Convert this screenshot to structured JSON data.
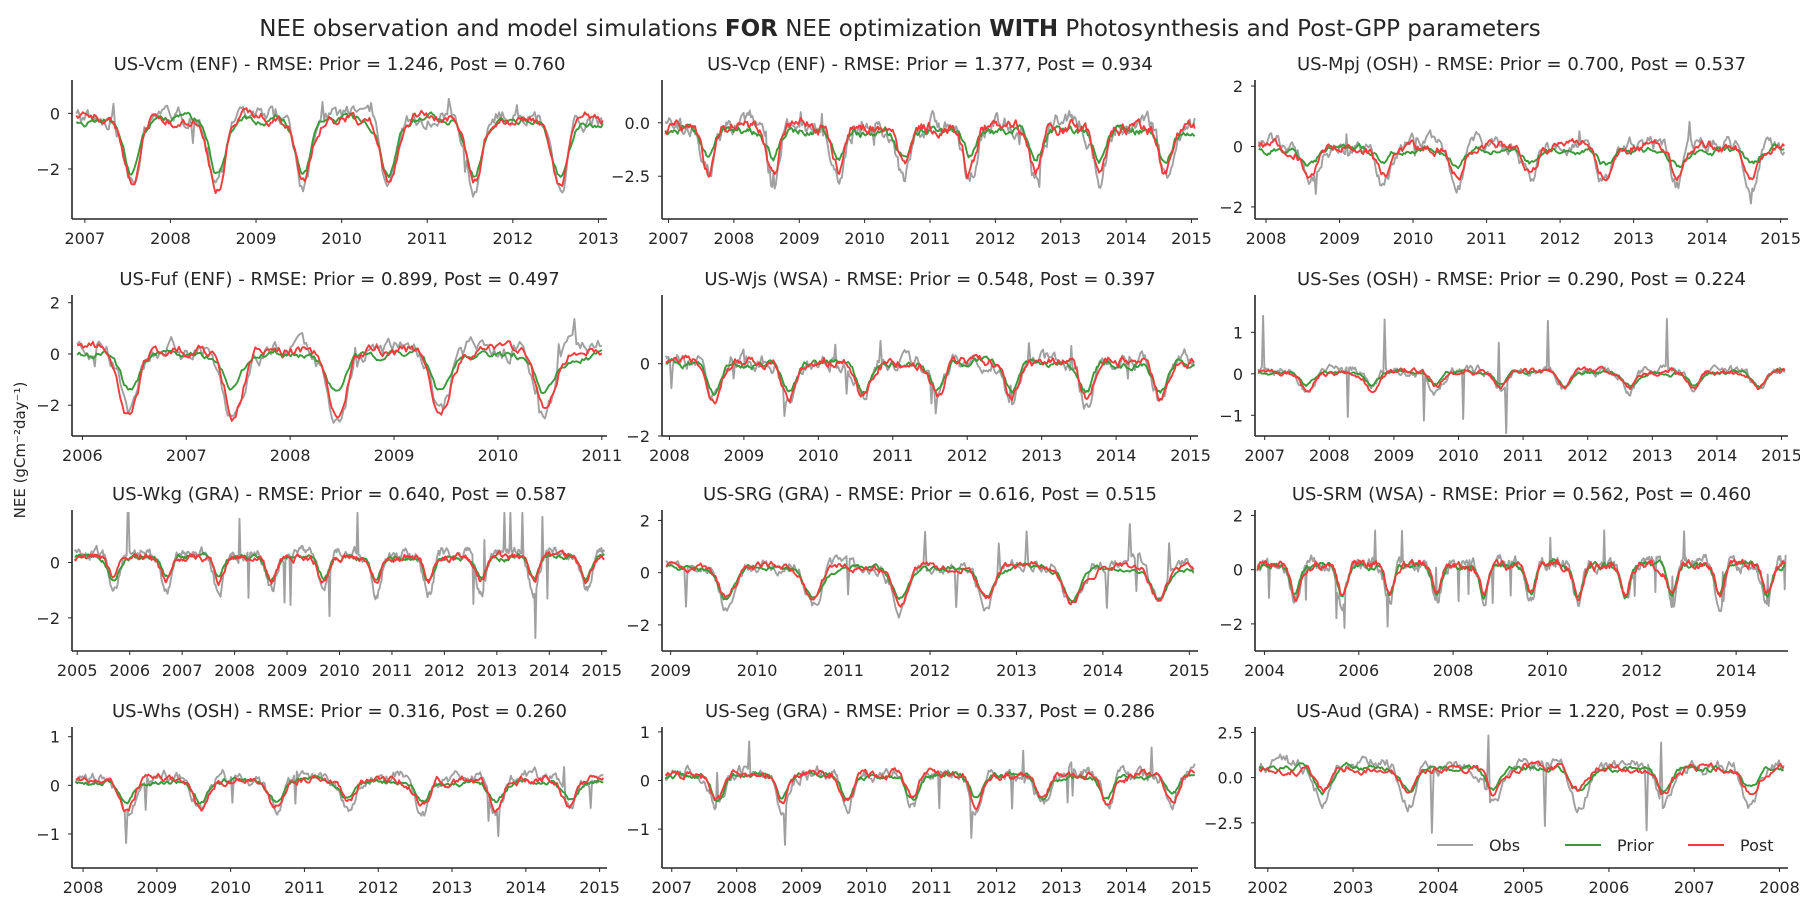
{
  "figure": {
    "title_parts": [
      {
        "text": "NEE observation and model simulations ",
        "bold": false
      },
      {
        "text": "FOR",
        "bold": true
      },
      {
        "text": " NEE optimization ",
        "bold": false
      },
      {
        "text": "WITH",
        "bold": true
      },
      {
        "text": " Photosynthesis and Post-GPP parameters",
        "bold": false
      }
    ],
    "ylabel": "NEE (gCm⁻²day⁻¹)"
  },
  "colors": {
    "Obs": "#a0a0a0",
    "Prior": "#3a9a3a",
    "Post": "#f03c3c",
    "axis": "#262626"
  },
  "legend": {
    "placement": "lower-right of last panel",
    "entries": [
      "Obs",
      "Prior",
      "Post"
    ]
  },
  "chart_data": [
    {
      "type": "line",
      "title": "US-Vcm (ENF) - RMSE: Prior = 1.246, Post = 0.760",
      "xlim": [
        2006.85,
        2013.1
      ],
      "ylim": [
        -3.8,
        1.2
      ],
      "xticks": [
        2007,
        2008,
        2009,
        2010,
        2011,
        2012,
        2013
      ],
      "yticks": [
        -2,
        0
      ],
      "ytick_labels": [
        "−2",
        "0"
      ],
      "signal": {
        "amp_obs": 1.6,
        "amp_prior": 1.2,
        "amp_post": 1.5,
        "offset": -0.9,
        "period": 1.0,
        "peak": 0.55,
        "noise": 0.5,
        "spike": 0.4
      },
      "series": [
        {
          "name": "Obs"
        },
        {
          "name": "Prior"
        },
        {
          "name": "Post"
        }
      ]
    },
    {
      "type": "line",
      "title": "US-Vcp (ENF) - RMSE: Prior = 1.377, Post = 0.934",
      "xlim": [
        2006.9,
        2015.1
      ],
      "ylim": [
        -4.5,
        2.0
      ],
      "xticks": [
        2007,
        2008,
        2009,
        2010,
        2011,
        2012,
        2013,
        2014,
        2015
      ],
      "yticks": [
        -2.5,
        0.0
      ],
      "ytick_labels": [
        "−2.5",
        "0.0"
      ],
      "signal": {
        "amp_obs": 1.6,
        "amp_prior": 0.8,
        "amp_post": 1.3,
        "offset": -0.9,
        "period": 1.0,
        "peak": 0.6,
        "noise": 0.7,
        "spike": 0.4
      },
      "series": [
        {
          "name": "Obs"
        },
        {
          "name": "Prior"
        },
        {
          "name": "Post"
        }
      ]
    },
    {
      "type": "line",
      "title": "US-Mpj (OSH) - RMSE: Prior = 0.700, Post = 0.537",
      "xlim": [
        2007.85,
        2015.1
      ],
      "ylim": [
        -2.4,
        2.2
      ],
      "xticks": [
        2008,
        2009,
        2010,
        2011,
        2012,
        2013,
        2014,
        2015
      ],
      "yticks": [
        -2,
        0,
        2
      ],
      "ytick_labels": [
        "−2",
        "0",
        "2"
      ],
      "signal": {
        "amp_obs": 0.8,
        "amp_prior": 0.3,
        "amp_post": 0.6,
        "offset": -0.3,
        "period": 1.0,
        "peak": 0.6,
        "noise": 0.4,
        "spike": 0.5
      },
      "series": [
        {
          "name": "Obs"
        },
        {
          "name": "Prior"
        },
        {
          "name": "Post"
        }
      ]
    },
    {
      "type": "line",
      "title": "US-Fuf (ENF) - RMSE: Prior = 0.899, Post = 0.497",
      "xlim": [
        2005.9,
        2011.05
      ],
      "ylim": [
        -3.2,
        2.3
      ],
      "xticks": [
        2006,
        2007,
        2008,
        2009,
        2010,
        2011
      ],
      "yticks": [
        -2,
        0,
        2
      ],
      "ytick_labels": [
        "−2",
        "0",
        "2"
      ],
      "signal": {
        "amp_obs": 1.6,
        "amp_prior": 0.9,
        "amp_post": 1.5,
        "offset": -0.5,
        "period": 1.0,
        "peak": 0.45,
        "noise": 0.6,
        "spike": 0.5
      },
      "series": [
        {
          "name": "Obs"
        },
        {
          "name": "Prior"
        },
        {
          "name": "Post"
        }
      ]
    },
    {
      "type": "line",
      "title": "US-Wjs (WSA) - RMSE: Prior = 0.548, Post = 0.397",
      "xlim": [
        2007.9,
        2015.1
      ],
      "ylim": [
        -2.0,
        1.9
      ],
      "xticks": [
        2008,
        2009,
        2010,
        2011,
        2012,
        2013,
        2014,
        2015
      ],
      "yticks": [
        -2,
        0
      ],
      "ytick_labels": [
        "−2",
        "0"
      ],
      "signal": {
        "amp_obs": 0.7,
        "amp_prior": 0.5,
        "amp_post": 0.6,
        "offset": -0.2,
        "period": 1.0,
        "peak": 0.6,
        "noise": 0.35,
        "spike": 0.6
      },
      "series": [
        {
          "name": "Obs"
        },
        {
          "name": "Prior"
        },
        {
          "name": "Post"
        }
      ]
    },
    {
      "type": "line",
      "title": "US-Ses (OSH) - RMSE: Prior = 0.290, Post = 0.224",
      "xlim": [
        2006.85,
        2015.1
      ],
      "ylim": [
        -1.5,
        1.9
      ],
      "xticks": [
        2007,
        2008,
        2009,
        2010,
        2011,
        2012,
        2013,
        2014,
        2015
      ],
      "yticks": [
        -1,
        0,
        1
      ],
      "ytick_labels": [
        "−1",
        "0",
        "1"
      ],
      "signal": {
        "amp_obs": 0.3,
        "amp_prior": 0.2,
        "amp_post": 0.25,
        "offset": -0.05,
        "period": 1.0,
        "peak": 0.65,
        "noise": 0.15,
        "spike": 1.4
      },
      "series": [
        {
          "name": "Obs"
        },
        {
          "name": "Prior"
        },
        {
          "name": "Post"
        }
      ]
    },
    {
      "type": "line",
      "title": "US-Wkg (GRA) - RMSE: Prior = 0.640, Post = 0.587",
      "xlim": [
        2004.9,
        2015.1
      ],
      "ylim": [
        -3.2,
        1.9
      ],
      "xticks": [
        2005,
        2006,
        2007,
        2008,
        2009,
        2010,
        2011,
        2012,
        2013,
        2014,
        2015
      ],
      "yticks": [
        -2,
        0
      ],
      "ytick_labels": [
        "−2",
        "0"
      ],
      "signal": {
        "amp_obs": 0.9,
        "amp_prior": 0.5,
        "amp_post": 0.55,
        "offset": 0,
        "period": 1.0,
        "peak": 0.7,
        "noise": 0.3,
        "spike": 1.3
      },
      "series": [
        {
          "name": "Obs"
        },
        {
          "name": "Prior"
        },
        {
          "name": "Post"
        }
      ]
    },
    {
      "type": "line",
      "title": "US-SRG (GRA) - RMSE: Prior = 0.616, Post = 0.515",
      "xlim": [
        2008.9,
        2015.1
      ],
      "ylim": [
        -3.0,
        2.4
      ],
      "xticks": [
        2009,
        2010,
        2011,
        2012,
        2013,
        2014,
        2015
      ],
      "yticks": [
        -2,
        0,
        2
      ],
      "ytick_labels": [
        "−2",
        "0",
        "2"
      ],
      "signal": {
        "amp_obs": 1.0,
        "amp_prior": 0.7,
        "amp_post": 0.8,
        "offset": -0.1,
        "period": 1.0,
        "peak": 0.65,
        "noise": 0.4,
        "spike": 1.0
      },
      "series": [
        {
          "name": "Obs"
        },
        {
          "name": "Prior"
        },
        {
          "name": "Post"
        }
      ]
    },
    {
      "type": "line",
      "title": "US-SRM (WSA) - RMSE: Prior = 0.562, Post = 0.460",
      "xlim": [
        2003.8,
        2015.1
      ],
      "ylim": [
        -3.0,
        2.2
      ],
      "xticks": [
        2004,
        2006,
        2008,
        2010,
        2012,
        2014
      ],
      "yticks": [
        -2,
        0,
        2
      ],
      "ytick_labels": [
        "−2",
        "0",
        "2"
      ],
      "signal": {
        "amp_obs": 0.9,
        "amp_prior": 0.7,
        "amp_post": 0.7,
        "offset": -0.1,
        "period": 1.0,
        "peak": 0.65,
        "noise": 0.35,
        "spike": 0.9
      },
      "series": [
        {
          "name": "Obs"
        },
        {
          "name": "Prior"
        },
        {
          "name": "Post"
        }
      ]
    },
    {
      "type": "line",
      "title": "US-Whs (OSH) - RMSE: Prior = 0.316, Post = 0.260",
      "xlim": [
        2007.85,
        2015.1
      ],
      "ylim": [
        -1.7,
        1.2
      ],
      "xticks": [
        2008,
        2009,
        2010,
        2011,
        2012,
        2013,
        2014,
        2015
      ],
      "yticks": [
        -1,
        0,
        1
      ],
      "ytick_labels": [
        "−1",
        "0",
        "1"
      ],
      "signal": {
        "amp_obs": 0.45,
        "amp_prior": 0.25,
        "amp_post": 0.35,
        "offset": 0,
        "period": 1.0,
        "peak": 0.6,
        "noise": 0.2,
        "spike": 0.8
      },
      "series": [
        {
          "name": "Obs"
        },
        {
          "name": "Prior"
        },
        {
          "name": "Post"
        }
      ]
    },
    {
      "type": "line",
      "title": "US-Seg (GRA) - RMSE: Prior = 0.337, Post = 0.286",
      "xlim": [
        2006.85,
        2015.1
      ],
      "ylim": [
        -1.8,
        1.1
      ],
      "xticks": [
        2007,
        2008,
        2009,
        2010,
        2011,
        2012,
        2013,
        2014,
        2015
      ],
      "yticks": [
        -1,
        0,
        1
      ],
      "ytick_labels": [
        "−1",
        "0",
        "1"
      ],
      "signal": {
        "amp_obs": 0.45,
        "amp_prior": 0.3,
        "amp_post": 0.35,
        "offset": 0,
        "period": 1.0,
        "peak": 0.7,
        "noise": 0.2,
        "spike": 0.9
      },
      "series": [
        {
          "name": "Obs"
        },
        {
          "name": "Prior"
        },
        {
          "name": "Post"
        }
      ]
    },
    {
      "type": "line",
      "title": "US-Aud (GRA) - RMSE: Prior = 1.220, Post = 0.959",
      "xlim": [
        2001.85,
        2008.1
      ],
      "ylim": [
        -5.0,
        2.8
      ],
      "xticks": [
        2002,
        2003,
        2004,
        2005,
        2006,
        2007,
        2008
      ],
      "yticks": [
        -2.5,
        0.0,
        2.5
      ],
      "ytick_labels": [
        "−2.5",
        "0.0",
        "2.5"
      ],
      "signal": {
        "amp_obs": 1.3,
        "amp_prior": 0.8,
        "amp_post": 0.8,
        "offset": 0.2,
        "period": 1.0,
        "peak": 0.65,
        "noise": 0.6,
        "spike": 1.8
      },
      "series": [
        {
          "name": "Obs"
        },
        {
          "name": "Prior"
        },
        {
          "name": "Post"
        }
      ]
    }
  ]
}
